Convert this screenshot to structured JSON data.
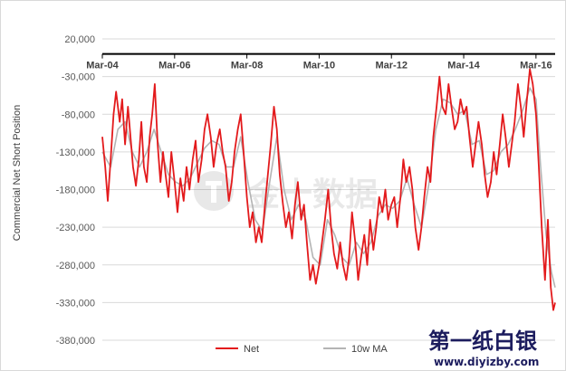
{
  "chart_data": {
    "type": "line",
    "title": "",
    "ylabel": "Commercial Net Short Position",
    "xlabel": "",
    "ylim": [
      -380000,
      20000
    ],
    "yticks": [
      20000,
      -30000,
      -80000,
      -130000,
      -180000,
      -230000,
      -280000,
      -330000,
      -380000
    ],
    "ytick_labels": [
      "20,000",
      "-30,000",
      "-80,000",
      "-130,000",
      "-180,000",
      "-230,000",
      "-280,000",
      "-330,000",
      "-380,000"
    ],
    "xticks": [
      2004.17,
      2006.17,
      2008.17,
      2010.17,
      2012.17,
      2014.17,
      2016.17
    ],
    "xtick_labels": [
      "Mar-04",
      "Mar-06",
      "Mar-08",
      "Mar-10",
      "Mar-12",
      "Mar-14",
      "Mar-16"
    ],
    "xlim": [
      2004.17,
      2016.7
    ],
    "x_axis_position": "top (crosses at y=0)",
    "grid": "horizontal",
    "legend_position": "bottom",
    "series": [
      {
        "name": "Net",
        "color": "#e31a1c",
        "points": [
          [
            2004.17,
            -110000
          ],
          [
            2004.25,
            -150000
          ],
          [
            2004.32,
            -195000
          ],
          [
            2004.4,
            -140000
          ],
          [
            2004.48,
            -80000
          ],
          [
            2004.55,
            -50000
          ],
          [
            2004.65,
            -90000
          ],
          [
            2004.72,
            -60000
          ],
          [
            2004.8,
            -120000
          ],
          [
            2004.88,
            -70000
          ],
          [
            2004.95,
            -110000
          ],
          [
            2005.02,
            -150000
          ],
          [
            2005.1,
            -175000
          ],
          [
            2005.18,
            -140000
          ],
          [
            2005.25,
            -90000
          ],
          [
            2005.32,
            -150000
          ],
          [
            2005.4,
            -170000
          ],
          [
            2005.48,
            -110000
          ],
          [
            2005.55,
            -80000
          ],
          [
            2005.62,
            -40000
          ],
          [
            2005.7,
            -120000
          ],
          [
            2005.78,
            -170000
          ],
          [
            2005.85,
            -130000
          ],
          [
            2005.92,
            -160000
          ],
          [
            2006.0,
            -190000
          ],
          [
            2006.08,
            -130000
          ],
          [
            2006.17,
            -170000
          ],
          [
            2006.25,
            -210000
          ],
          [
            2006.33,
            -165000
          ],
          [
            2006.42,
            -195000
          ],
          [
            2006.5,
            -150000
          ],
          [
            2006.58,
            -180000
          ],
          [
            2006.67,
            -140000
          ],
          [
            2006.75,
            -115000
          ],
          [
            2006.83,
            -170000
          ],
          [
            2006.92,
            -140000
          ],
          [
            2007.0,
            -100000
          ],
          [
            2007.08,
            -80000
          ],
          [
            2007.17,
            -110000
          ],
          [
            2007.25,
            -150000
          ],
          [
            2007.33,
            -120000
          ],
          [
            2007.42,
            -100000
          ],
          [
            2007.5,
            -130000
          ],
          [
            2007.58,
            -150000
          ],
          [
            2007.67,
            -195000
          ],
          [
            2007.75,
            -170000
          ],
          [
            2007.83,
            -130000
          ],
          [
            2007.92,
            -100000
          ],
          [
            2008.0,
            -80000
          ],
          [
            2008.08,
            -130000
          ],
          [
            2008.17,
            -190000
          ],
          [
            2008.25,
            -230000
          ],
          [
            2008.33,
            -210000
          ],
          [
            2008.42,
            -250000
          ],
          [
            2008.5,
            -230000
          ],
          [
            2008.58,
            -250000
          ],
          [
            2008.67,
            -200000
          ],
          [
            2008.75,
            -160000
          ],
          [
            2008.83,
            -120000
          ],
          [
            2008.92,
            -70000
          ],
          [
            2009.0,
            -100000
          ],
          [
            2009.08,
            -160000
          ],
          [
            2009.17,
            -200000
          ],
          [
            2009.25,
            -230000
          ],
          [
            2009.33,
            -210000
          ],
          [
            2009.42,
            -245000
          ],
          [
            2009.5,
            -200000
          ],
          [
            2009.58,
            -170000
          ],
          [
            2009.67,
            -220000
          ],
          [
            2009.75,
            -200000
          ],
          [
            2009.83,
            -250000
          ],
          [
            2009.92,
            -300000
          ],
          [
            2010.0,
            -280000
          ],
          [
            2010.08,
            -305000
          ],
          [
            2010.17,
            -280000
          ],
          [
            2010.25,
            -250000
          ],
          [
            2010.33,
            -220000
          ],
          [
            2010.42,
            -180000
          ],
          [
            2010.5,
            -230000
          ],
          [
            2010.58,
            -265000
          ],
          [
            2010.67,
            -285000
          ],
          [
            2010.75,
            -250000
          ],
          [
            2010.83,
            -280000
          ],
          [
            2010.92,
            -300000
          ],
          [
            2011.0,
            -270000
          ],
          [
            2011.08,
            -210000
          ],
          [
            2011.17,
            -250000
          ],
          [
            2011.25,
            -300000
          ],
          [
            2011.33,
            -270000
          ],
          [
            2011.42,
            -240000
          ],
          [
            2011.5,
            -280000
          ],
          [
            2011.58,
            -220000
          ],
          [
            2011.67,
            -260000
          ],
          [
            2011.75,
            -230000
          ],
          [
            2011.83,
            -190000
          ],
          [
            2011.92,
            -210000
          ],
          [
            2012.0,
            -180000
          ],
          [
            2012.08,
            -220000
          ],
          [
            2012.17,
            -200000
          ],
          [
            2012.25,
            -190000
          ],
          [
            2012.33,
            -230000
          ],
          [
            2012.42,
            -190000
          ],
          [
            2012.5,
            -140000
          ],
          [
            2012.58,
            -170000
          ],
          [
            2012.67,
            -150000
          ],
          [
            2012.75,
            -180000
          ],
          [
            2012.83,
            -230000
          ],
          [
            2012.92,
            -260000
          ],
          [
            2013.0,
            -230000
          ],
          [
            2013.08,
            -190000
          ],
          [
            2013.17,
            -150000
          ],
          [
            2013.25,
            -170000
          ],
          [
            2013.33,
            -110000
          ],
          [
            2013.42,
            -70000
          ],
          [
            2013.5,
            -30000
          ],
          [
            2013.58,
            -70000
          ],
          [
            2013.67,
            -80000
          ],
          [
            2013.75,
            -40000
          ],
          [
            2013.83,
            -70000
          ],
          [
            2013.92,
            -100000
          ],
          [
            2014.0,
            -90000
          ],
          [
            2014.08,
            -60000
          ],
          [
            2014.17,
            -80000
          ],
          [
            2014.25,
            -70000
          ],
          [
            2014.33,
            -110000
          ],
          [
            2014.42,
            -150000
          ],
          [
            2014.5,
            -120000
          ],
          [
            2014.58,
            -90000
          ],
          [
            2014.67,
            -120000
          ],
          [
            2014.75,
            -160000
          ],
          [
            2014.83,
            -190000
          ],
          [
            2014.92,
            -170000
          ],
          [
            2015.0,
            -130000
          ],
          [
            2015.08,
            -160000
          ],
          [
            2015.17,
            -120000
          ],
          [
            2015.25,
            -80000
          ],
          [
            2015.33,
            -110000
          ],
          [
            2015.42,
            -150000
          ],
          [
            2015.5,
            -120000
          ],
          [
            2015.58,
            -90000
          ],
          [
            2015.67,
            -40000
          ],
          [
            2015.75,
            -70000
          ],
          [
            2015.83,
            -110000
          ],
          [
            2015.92,
            -60000
          ],
          [
            2016.0,
            -20000
          ],
          [
            2016.08,
            -40000
          ],
          [
            2016.17,
            -80000
          ],
          [
            2016.25,
            -150000
          ],
          [
            2016.33,
            -230000
          ],
          [
            2016.42,
            -300000
          ],
          [
            2016.5,
            -220000
          ],
          [
            2016.58,
            -310000
          ],
          [
            2016.65,
            -340000
          ],
          [
            2016.7,
            -330000
          ]
        ]
      },
      {
        "name": "10w MA",
        "color": "#b4b4b4",
        "points": [
          [
            2004.17,
            -130000
          ],
          [
            2004.4,
            -150000
          ],
          [
            2004.6,
            -100000
          ],
          [
            2004.8,
            -90000
          ],
          [
            2005.0,
            -130000
          ],
          [
            2005.2,
            -150000
          ],
          [
            2005.4,
            -130000
          ],
          [
            2005.6,
            -100000
          ],
          [
            2005.8,
            -130000
          ],
          [
            2006.0,
            -160000
          ],
          [
            2006.2,
            -170000
          ],
          [
            2006.4,
            -175000
          ],
          [
            2006.6,
            -165000
          ],
          [
            2006.8,
            -145000
          ],
          [
            2007.0,
            -125000
          ],
          [
            2007.2,
            -115000
          ],
          [
            2007.4,
            -120000
          ],
          [
            2007.6,
            -150000
          ],
          [
            2007.8,
            -150000
          ],
          [
            2008.0,
            -110000
          ],
          [
            2008.2,
            -170000
          ],
          [
            2008.4,
            -220000
          ],
          [
            2008.6,
            -235000
          ],
          [
            2008.8,
            -170000
          ],
          [
            2009.0,
            -110000
          ],
          [
            2009.2,
            -180000
          ],
          [
            2009.4,
            -220000
          ],
          [
            2009.6,
            -200000
          ],
          [
            2009.8,
            -220000
          ],
          [
            2010.0,
            -270000
          ],
          [
            2010.2,
            -280000
          ],
          [
            2010.4,
            -220000
          ],
          [
            2010.6,
            -240000
          ],
          [
            2010.8,
            -270000
          ],
          [
            2011.0,
            -280000
          ],
          [
            2011.2,
            -250000
          ],
          [
            2011.4,
            -265000
          ],
          [
            2011.6,
            -250000
          ],
          [
            2011.8,
            -215000
          ],
          [
            2012.0,
            -200000
          ],
          [
            2012.2,
            -205000
          ],
          [
            2012.4,
            -195000
          ],
          [
            2012.6,
            -165000
          ],
          [
            2012.8,
            -200000
          ],
          [
            2013.0,
            -230000
          ],
          [
            2013.2,
            -175000
          ],
          [
            2013.4,
            -100000
          ],
          [
            2013.6,
            -60000
          ],
          [
            2013.8,
            -65000
          ],
          [
            2014.0,
            -80000
          ],
          [
            2014.2,
            -75000
          ],
          [
            2014.4,
            -120000
          ],
          [
            2014.6,
            -115000
          ],
          [
            2014.8,
            -160000
          ],
          [
            2015.0,
            -155000
          ],
          [
            2015.2,
            -130000
          ],
          [
            2015.4,
            -120000
          ],
          [
            2015.6,
            -100000
          ],
          [
            2015.8,
            -75000
          ],
          [
            2016.0,
            -45000
          ],
          [
            2016.17,
            -60000
          ],
          [
            2016.3,
            -150000
          ],
          [
            2016.45,
            -240000
          ],
          [
            2016.6,
            -290000
          ],
          [
            2016.7,
            -310000
          ]
        ]
      }
    ]
  },
  "watermarks": {
    "center_text": "金十数据",
    "corner_title": "第一纸白银",
    "corner_url": "www.diyizby.com"
  }
}
